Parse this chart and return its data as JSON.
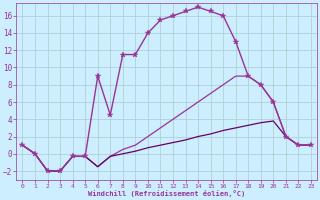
{
  "xlabel": "Windchill (Refroidissement éolien,°C)",
  "ylabel": "",
  "background_color": "#cceeff",
  "line_color": "#993399",
  "grid_color": "#aacccc",
  "xlim": [
    -0.5,
    23.5
  ],
  "ylim": [
    -3.0,
    17.5
  ],
  "xticks": [
    0,
    1,
    2,
    3,
    4,
    5,
    6,
    7,
    8,
    9,
    10,
    11,
    12,
    13,
    14,
    15,
    16,
    17,
    18,
    19,
    20,
    21,
    22,
    23
  ],
  "yticks": [
    -2,
    0,
    2,
    4,
    6,
    8,
    10,
    12,
    14,
    16
  ],
  "series": [
    {
      "x": [
        0,
        1,
        2,
        3,
        4,
        5,
        6,
        7,
        8,
        9,
        10,
        11,
        12,
        13,
        14,
        15,
        16,
        17,
        18,
        19,
        20,
        21,
        22,
        23
      ],
      "y": [
        1,
        0,
        -2,
        -2,
        -0.3,
        -0.3,
        9,
        4.5,
        11.5,
        11.5,
        14,
        15.5,
        16,
        16.5,
        17,
        16.5,
        16,
        13,
        9,
        8,
        6,
        2,
        1,
        1
      ],
      "color": "#993399",
      "marker": "*",
      "linewidth": 1.0,
      "markersize": 4
    },
    {
      "x": [
        0,
        1,
        2,
        3,
        4,
        5,
        6,
        7,
        8,
        9,
        10,
        11,
        12,
        13,
        14,
        15,
        16,
        17,
        18,
        19,
        20,
        21,
        22,
        23
      ],
      "y": [
        1,
        0,
        -2,
        -2,
        -0.3,
        -0.3,
        -1.5,
        -0.3,
        0.5,
        1,
        2,
        3,
        4,
        5,
        6,
        7,
        8,
        9,
        9,
        8,
        6,
        2,
        1,
        1
      ],
      "color": "#993399",
      "marker": null,
      "linewidth": 0.9,
      "markersize": 0
    },
    {
      "x": [
        0,
        1,
        2,
        3,
        4,
        5,
        6,
        7,
        8,
        9,
        10,
        11,
        12,
        13,
        14,
        15,
        16,
        17,
        18,
        19,
        20,
        21,
        22,
        23
      ],
      "y": [
        1,
        0,
        -2,
        -2,
        -0.3,
        -0.3,
        -1.5,
        -0.3,
        0,
        0.3,
        0.7,
        1.0,
        1.3,
        1.6,
        2.0,
        2.3,
        2.7,
        3.0,
        3.3,
        3.6,
        3.8,
        2,
        1,
        1
      ],
      "color": "#660066",
      "marker": null,
      "linewidth": 0.9,
      "markersize": 0
    }
  ]
}
